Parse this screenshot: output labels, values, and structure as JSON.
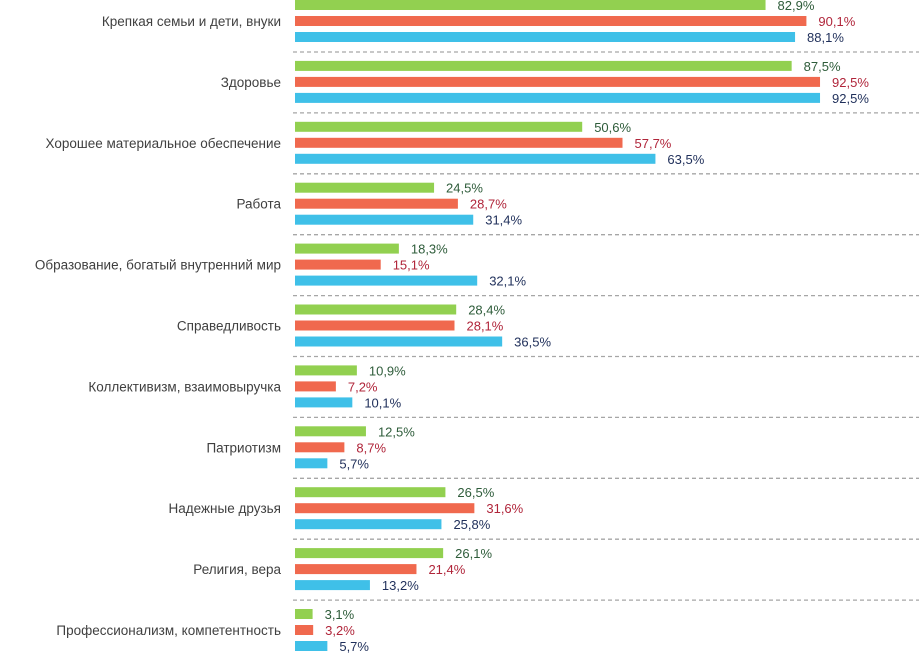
{
  "chart_data": {
    "type": "bar",
    "orientation": "horizontal",
    "title": "",
    "xlabel": "",
    "ylabel": "",
    "xlim": [
      0,
      100
    ],
    "grid": false,
    "legend": "none",
    "value_format": "comma-decimal percent",
    "categories": [
      "Крепкая семьи и дети, внуки",
      "Здоровье",
      "Хорошее материальное обеспечение",
      "Работа",
      "Образование, богатый внутренний мир",
      "Справедливость",
      "Коллективизм, взаимовыручка",
      "Патриотизм",
      "Надежные друзья",
      "Религия, вера",
      "Профессионализм, компетентность"
    ],
    "series": [
      {
        "name": "series-green",
        "color": "#92D050",
        "label_color": "#2E5C3A",
        "values": [
          82.9,
          87.5,
          50.6,
          24.5,
          18.3,
          28.4,
          10.9,
          12.5,
          26.5,
          26.1,
          3.1
        ],
        "labels": [
          "82,9%",
          "87,5%",
          "50,6%",
          "24,5%",
          "18,3%",
          "28,4%",
          "10,9%",
          "12,5%",
          "26,5%",
          "26,1%",
          "3,1%"
        ]
      },
      {
        "name": "series-red",
        "color": "#F0694E",
        "label_color": "#B0253A",
        "values": [
          90.1,
          92.5,
          57.7,
          28.7,
          15.1,
          28.1,
          7.2,
          8.7,
          31.6,
          21.4,
          3.2
        ],
        "labels": [
          "90,1%",
          "92,5%",
          "57,7%",
          "28,7%",
          "15,1%",
          "28,1%",
          "7,2%",
          "8,7%",
          "31,6%",
          "21,4%",
          "3,2%"
        ]
      },
      {
        "name": "series-blue",
        "color": "#3FC0E8",
        "label_color": "#1F2F5A",
        "values": [
          88.1,
          92.5,
          63.5,
          31.4,
          32.1,
          36.5,
          10.1,
          5.7,
          25.8,
          13.2,
          5.7
        ],
        "labels": [
          "88,1%",
          "92,5%",
          "63,5%",
          "31,4%",
          "32,1%",
          "36,5%",
          "10,1%",
          "5,7%",
          "25,8%",
          "13,2%",
          "5,7%"
        ]
      }
    ],
    "separator_color": "#A6A6A6",
    "category_label_color": "#404040"
  }
}
